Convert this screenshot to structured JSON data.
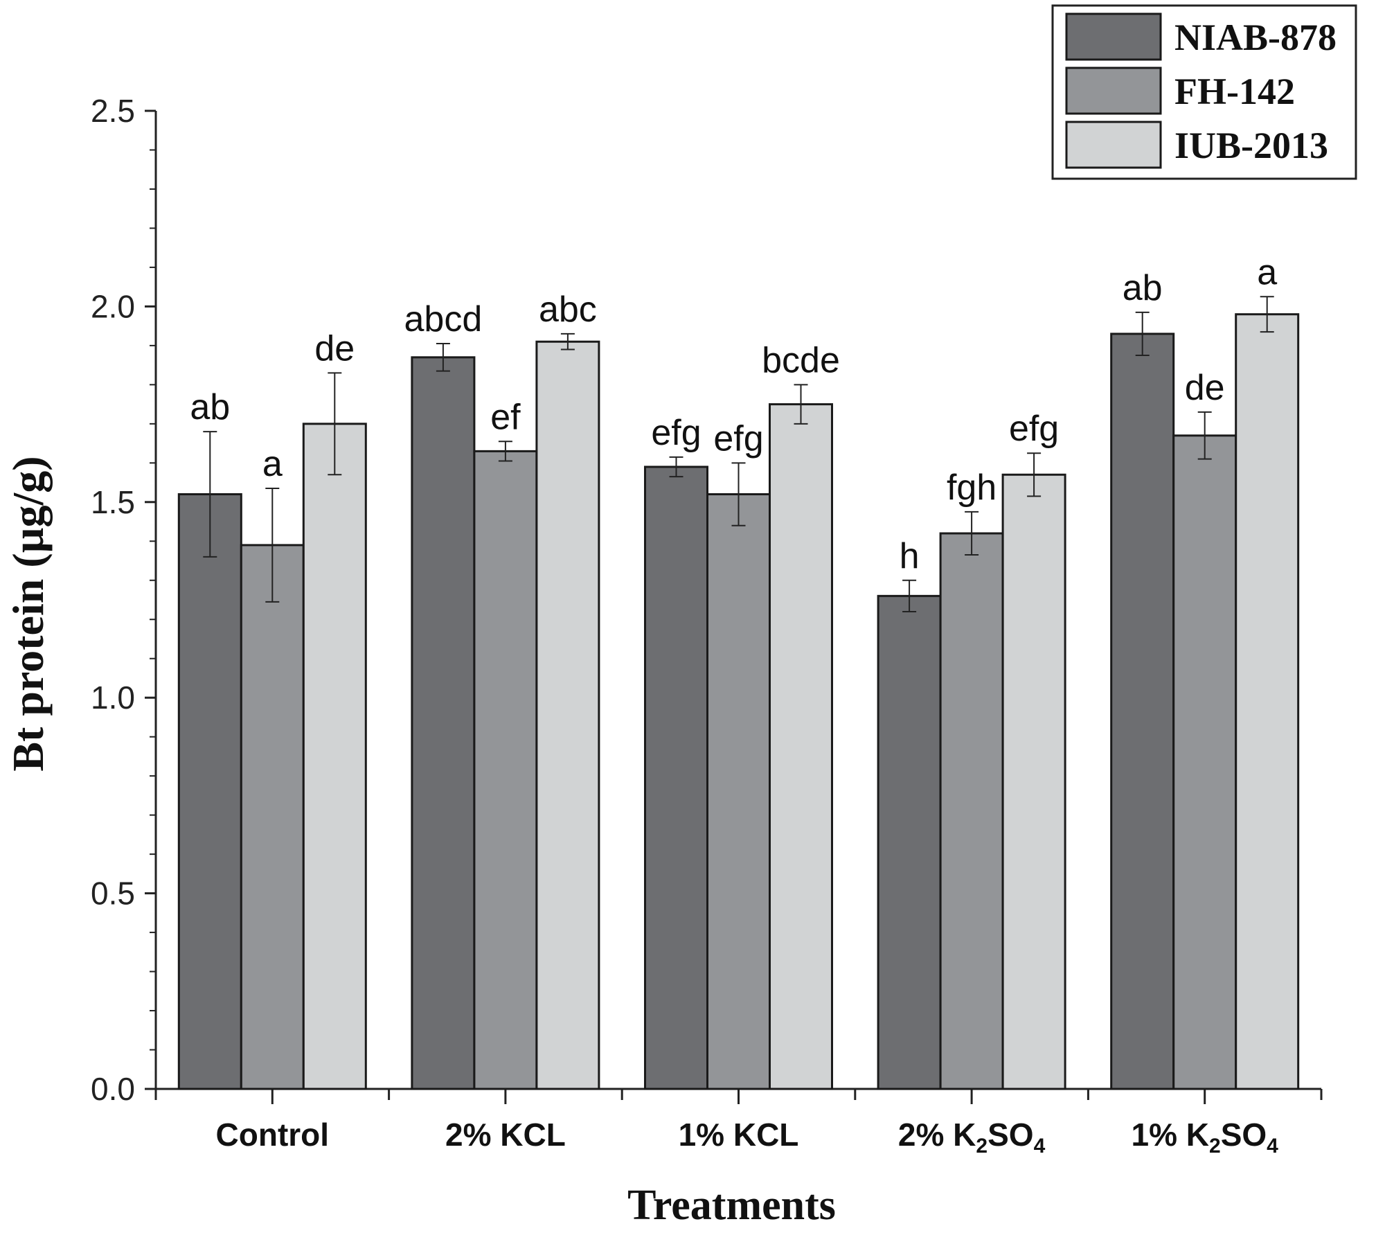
{
  "chart_data": {
    "type": "bar",
    "xlabel": "Treatments",
    "ylabel": "Bt protein (µg/g)",
    "ylim": [
      0,
      2.5
    ],
    "yticks": [
      "0.0",
      "0.5",
      "1.0",
      "1.5",
      "2.0",
      "2.5"
    ],
    "categories": [
      {
        "main": "Control",
        "sub": "",
        "tail": ""
      },
      {
        "main": "2% KCL",
        "sub": "",
        "tail": ""
      },
      {
        "main": "1% KCL",
        "sub": "",
        "tail": ""
      },
      {
        "main": "2% K",
        "sub": "2",
        "tail": "SO",
        "sub2": "4"
      },
      {
        "main": "1% K",
        "sub": "2",
        "tail": "SO",
        "sub2": "4"
      }
    ],
    "series": [
      {
        "name": "NIAB-878",
        "color": "#6d6e71",
        "values": [
          1.52,
          1.87,
          1.59,
          1.26,
          1.93
        ],
        "errors": [
          0.16,
          0.035,
          0.025,
          0.04,
          0.055
        ],
        "letters": [
          "ab",
          "abcd",
          "efg",
          "h",
          "ab"
        ]
      },
      {
        "name": "FH-142",
        "color": "#939598",
        "values": [
          1.39,
          1.63,
          1.52,
          1.42,
          1.67
        ],
        "errors": [
          0.145,
          0.025,
          0.08,
          0.055,
          0.06
        ],
        "letters": [
          "a",
          "ef",
          "efg",
          "fgh",
          "de"
        ]
      },
      {
        "name": "IUB-2013",
        "color": "#d1d3d4",
        "values": [
          1.7,
          1.91,
          1.75,
          1.57,
          1.98
        ],
        "errors": [
          0.13,
          0.02,
          0.05,
          0.055,
          0.045
        ],
        "letters": [
          "de",
          "abc",
          "bcde",
          "efg",
          "a"
        ]
      }
    ],
    "legend_position": "top-right"
  }
}
